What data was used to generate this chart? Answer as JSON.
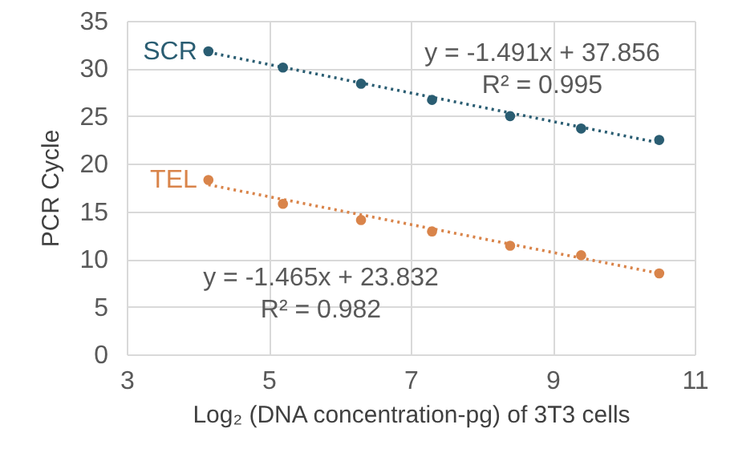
{
  "chart_data": {
    "type": "scatter",
    "xlabel": "Log₂ (DNA concentration-pg) of 3T3 cells",
    "ylabel": "PCR Cycle",
    "series": [
      {
        "name": "SCR",
        "type": "scatter",
        "color": "#2a5d72",
        "x": [
          4.15,
          5.2,
          6.3,
          7.3,
          8.4,
          9.4,
          10.5
        ],
        "values": [
          31.8,
          30.1,
          28.4,
          26.7,
          25.0,
          23.7,
          22.5
        ]
      },
      {
        "name": "TEL",
        "type": "scatter",
        "color": "#d9844a",
        "x": [
          4.15,
          5.2,
          6.3,
          7.3,
          8.4,
          9.4,
          10.5
        ],
        "values": [
          18.3,
          15.8,
          14.1,
          12.9,
          11.4,
          10.4,
          8.5
        ]
      },
      {
        "type": "line",
        "color": "#2a5d72",
        "marker": "none",
        "line_style": "dotted",
        "x": [
          4.15,
          10.5
        ],
        "values": [
          31.7,
          22.2
        ]
      },
      {
        "type": "line",
        "color": "#d9844a",
        "marker": "none",
        "line_style": "dotted",
        "x": [
          4.15,
          10.5
        ],
        "values": [
          17.8,
          8.5
        ]
      }
    ],
    "annotations": [
      "y = -1.491x + 37.856",
      "R² = 0.995",
      "y = -1.465x + 23.832",
      "R² = 0.982"
    ],
    "xlim": [
      3,
      11
    ],
    "xticks": [
      3,
      5,
      7,
      9,
      11
    ],
    "ylim": [
      0,
      35
    ],
    "yticks": [
      0,
      5,
      10,
      15,
      20,
      25,
      30,
      35
    ],
    "grid": true,
    "marker": "circle"
  }
}
